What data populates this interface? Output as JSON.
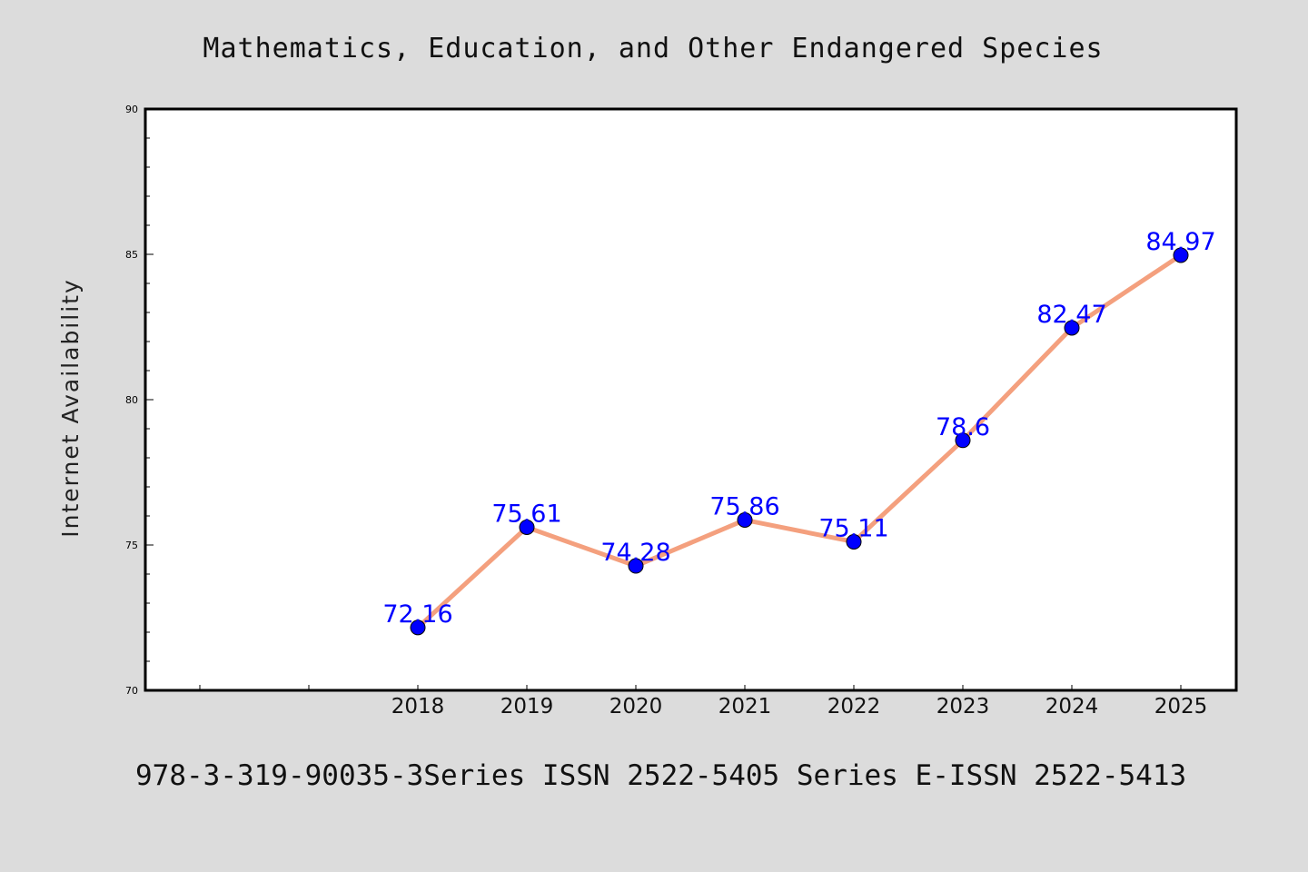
{
  "chart_data": {
    "type": "line",
    "title": "Mathematics, Education, and Other Endangered Species",
    "xlabel": "",
    "ylabel": "Internet Availability",
    "footer": "978-3-319-90035-3Series ISSN 2522-5405 Series E-ISSN 2522-5413",
    "categories": [
      "2018",
      "2019",
      "2020",
      "2021",
      "2022",
      "2023",
      "2024",
      "2025"
    ],
    "x_ticks": [
      "",
      "",
      "2018",
      "2019",
      "2020",
      "2021",
      "2022",
      "2023",
      "2024",
      "2025"
    ],
    "series": [
      {
        "values": [
          72.16,
          75.61,
          74.28,
          75.86,
          75.11,
          78.6,
          82.47,
          84.97
        ],
        "labels": [
          "72.16",
          "75.61",
          "74.28",
          "75.86",
          "75.11",
          "78.6",
          "82.47",
          "84.97"
        ]
      }
    ],
    "ylim": [
      70,
      90
    ],
    "y_ticks": [
      70,
      75,
      80,
      85,
      90
    ],
    "grid": false,
    "colors": {
      "line": "#f4a07e",
      "marker": "#0000ff",
      "label": "#0000ff",
      "background": "#dcdcdc",
      "plot_background": "#ffffff"
    }
  }
}
